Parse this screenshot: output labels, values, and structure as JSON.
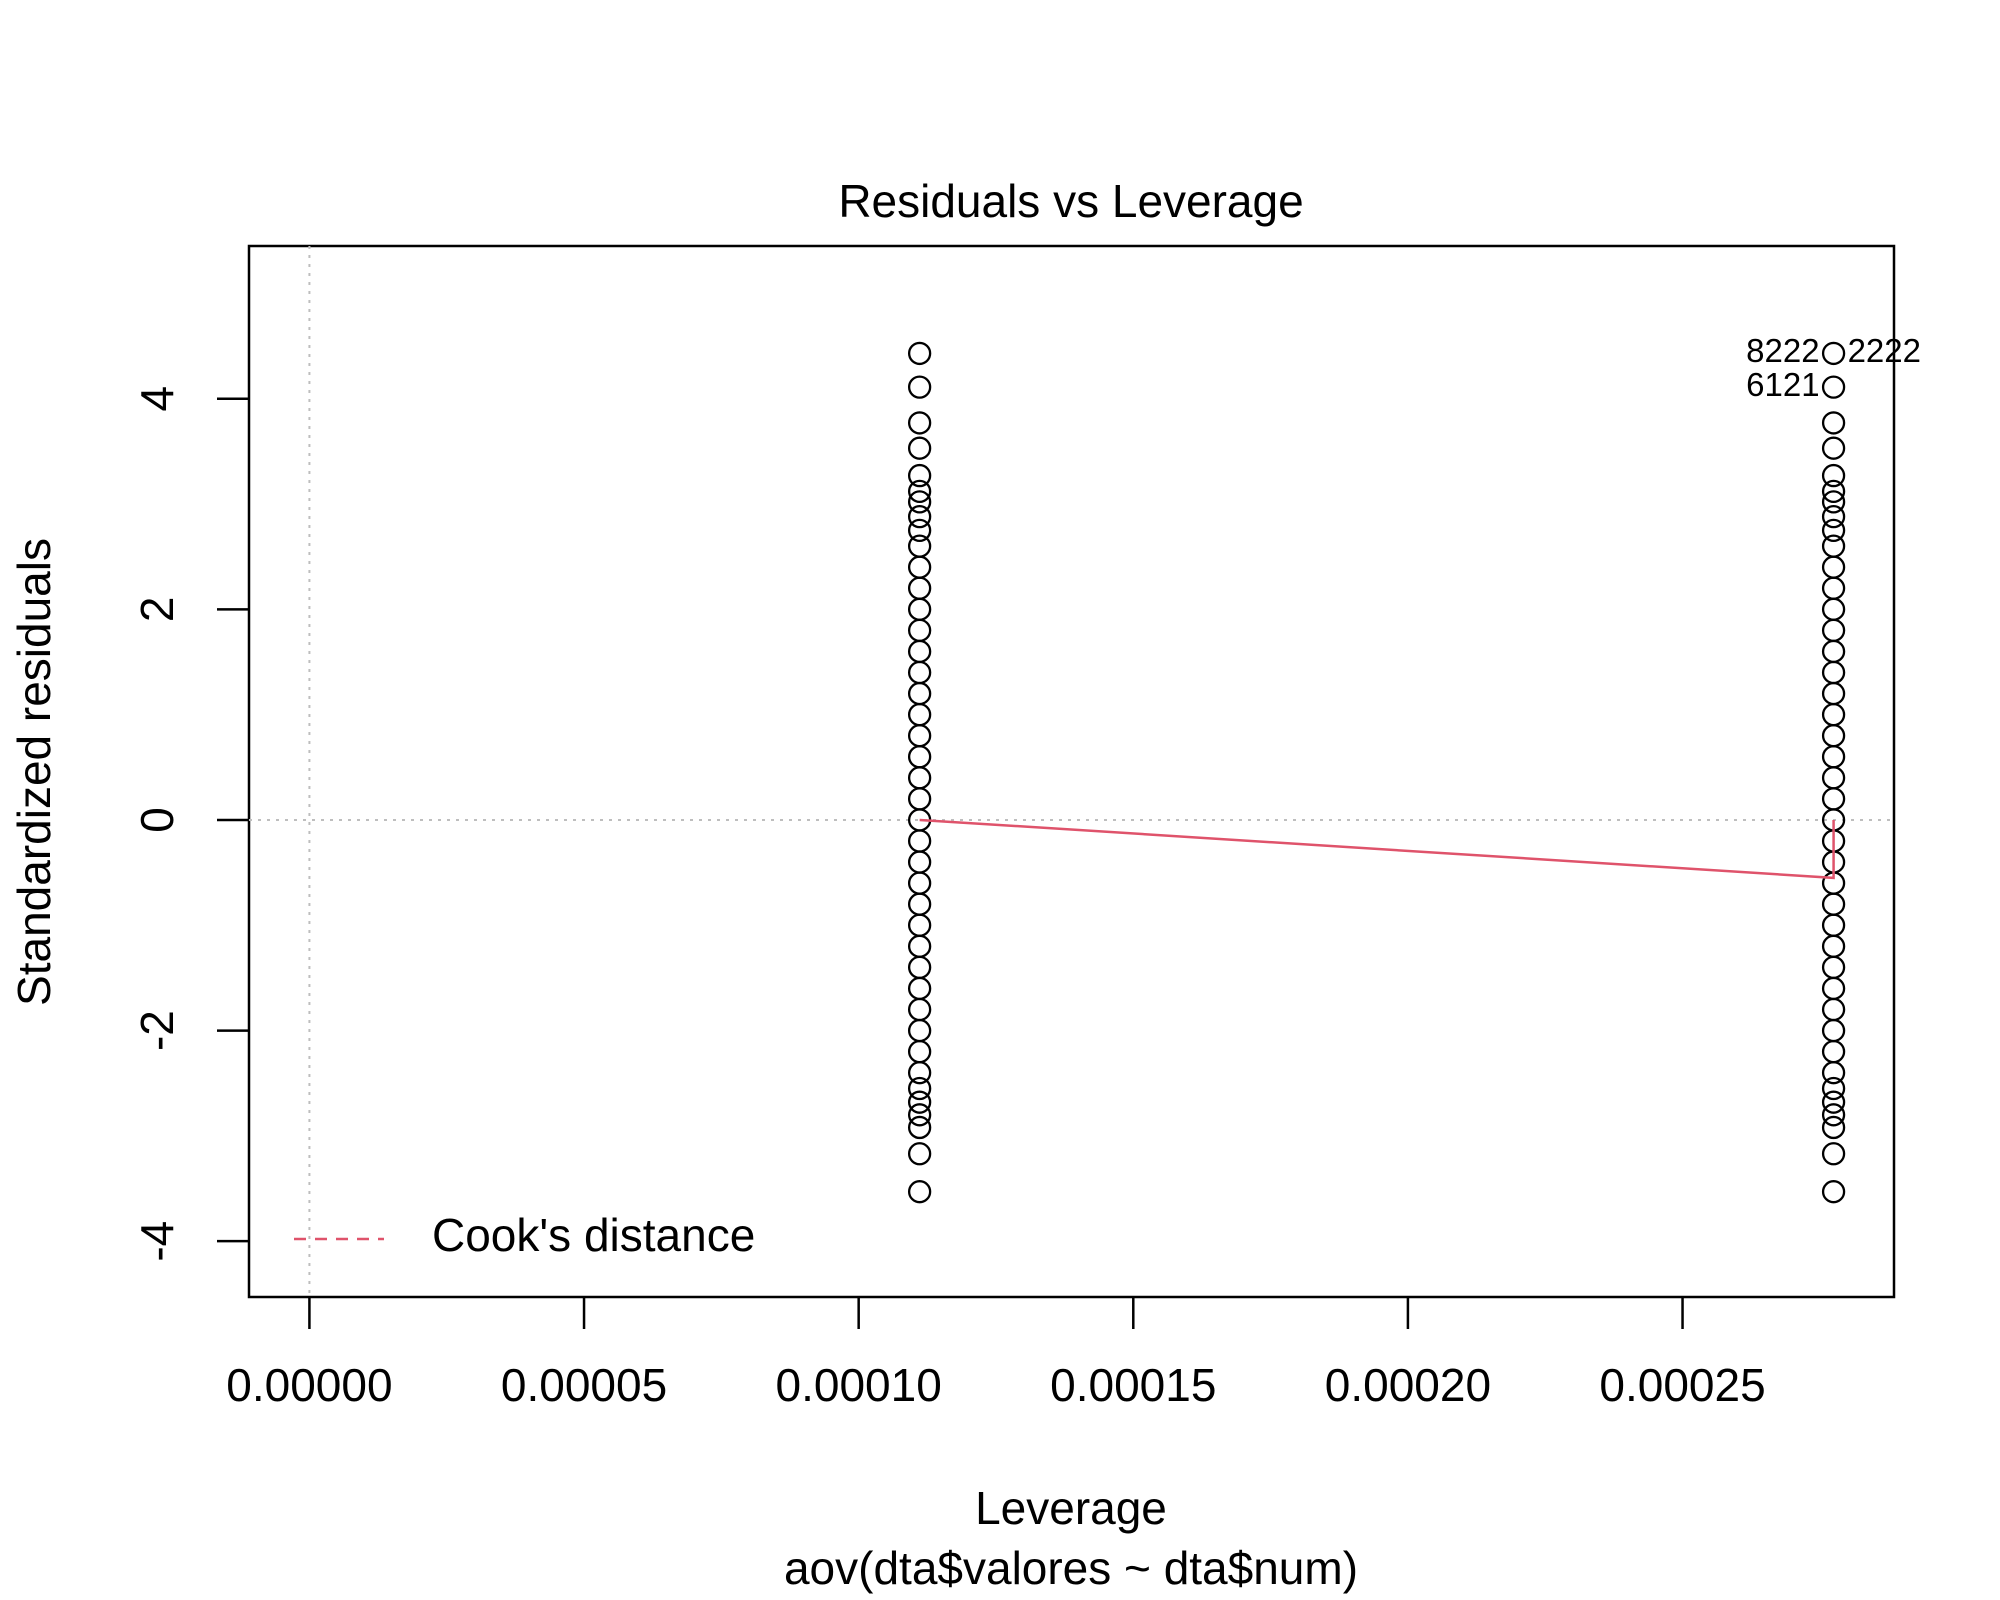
{
  "chart_data": {
    "type": "scatter",
    "title": "Residuals vs Leverage",
    "x_label": "Leverage",
    "subtitle": "aov(dta$valores ~ dta$num)",
    "y_label": "Standardized residuals",
    "xlim": [
      -1.1e-05,
      0.0002885
    ],
    "ylim": [
      -4.53,
      5.45
    ],
    "xticks": [
      {
        "value": 0,
        "label": "0.00000"
      },
      {
        "value": 5e-05,
        "label": "0.00005"
      },
      {
        "value": 0.0001,
        "label": "0.00010"
      },
      {
        "value": 0.00015,
        "label": "0.00015"
      },
      {
        "value": 0.0002,
        "label": "0.00020"
      },
      {
        "value": 0.00025,
        "label": "0.00025"
      }
    ],
    "yticks": [
      -4,
      -2,
      0,
      2,
      4
    ],
    "reference_lines": {
      "x": [
        0
      ],
      "y": [
        0
      ],
      "color": "#bebebe"
    },
    "series": [
      {
        "color": "#000000",
        "x": [
          0.0001111,
          0.0001111,
          0.0001111,
          0.0001111,
          0.0001111,
          0.0001111,
          0.0001111,
          0.0001111,
          0.0001111,
          0.0001111,
          0.0001111,
          0.0001111,
          0.0001111,
          0.0001111,
          0.0001111,
          0.0001111,
          0.0001111,
          0.0001111,
          0.0001111,
          0.0001111,
          0.0001111,
          0.0001111,
          0.0001111,
          0.0001111,
          0.0001111,
          0.0001111,
          0.0001111,
          0.0001111,
          0.0001111,
          0.0001111,
          0.0001111,
          0.0001111,
          0.0001111,
          0.0001111,
          0.0001111,
          0.0001111,
          0.0001111,
          0.0001111,
          0.0001111,
          0.0001111,
          0.0001111
        ],
        "values": [
          4.43,
          4.11,
          3.77,
          3.53,
          3.27,
          3.12,
          3.02,
          2.88,
          2.75,
          2.6,
          2.4,
          2.2,
          2.0,
          1.8,
          1.6,
          1.4,
          1.2,
          1.0,
          0.8,
          0.6,
          0.4,
          0.2,
          0,
          -0.2,
          -0.4,
          -0.6,
          -0.8,
          -1.0,
          -1.2,
          -1.4,
          -1.6,
          -1.8,
          -2.0,
          -2.2,
          -2.4,
          -2.55,
          -2.68,
          -2.8,
          -2.92,
          -3.17,
          -3.53
        ]
      },
      {
        "color": "#000000",
        "x": [
          0.0002775,
          0.0002775,
          0.0002775,
          0.0002775,
          0.0002775,
          0.0002775,
          0.0002775,
          0.0002775,
          0.0002775,
          0.0002775,
          0.0002775,
          0.0002775,
          0.0002775,
          0.0002775,
          0.0002775,
          0.0002775,
          0.0002775,
          0.0002775,
          0.0002775,
          0.0002775,
          0.0002775,
          0.0002775,
          0.0002775,
          0.0002775,
          0.0002775,
          0.0002775,
          0.0002775,
          0.0002775,
          0.0002775,
          0.0002775,
          0.0002775,
          0.0002775,
          0.0002775,
          0.0002775,
          0.0002775,
          0.0002775,
          0.0002775,
          0.0002775,
          0.0002775,
          0.0002775,
          0.0002775
        ],
        "values": [
          4.43,
          4.11,
          3.77,
          3.53,
          3.27,
          3.12,
          3.02,
          2.88,
          2.75,
          2.6,
          2.4,
          2.2,
          2.0,
          1.8,
          1.6,
          1.4,
          1.2,
          1.0,
          0.8,
          0.6,
          0.4,
          0.2,
          0,
          -0.2,
          -0.4,
          -0.6,
          -0.8,
          -1.0,
          -1.2,
          -1.4,
          -1.6,
          -1.8,
          -2.0,
          -2.2,
          -2.4,
          -2.55,
          -2.68,
          -2.8,
          -2.92,
          -3.17,
          -3.53
        ]
      }
    ],
    "smooth_line": {
      "color": "#DF536B",
      "x": [
        0.0001111,
        0.0002775,
        0.0002775
      ],
      "values": [
        0,
        -0.55,
        0
      ]
    },
    "annotations": [
      {
        "text": "8222",
        "x": 0.0002775,
        "y": 4.43,
        "side": "left"
      },
      {
        "text": "2222",
        "x": 0.0002775,
        "y": 4.43,
        "side": "right"
      },
      {
        "text": "6121",
        "x": 0.0002775,
        "y": 4.11,
        "side": "left"
      }
    ],
    "legend": {
      "position": "bottomleft",
      "entries": [
        {
          "label": "Cook's distance",
          "color": "#DF536B",
          "dashed": true
        }
      ]
    }
  }
}
